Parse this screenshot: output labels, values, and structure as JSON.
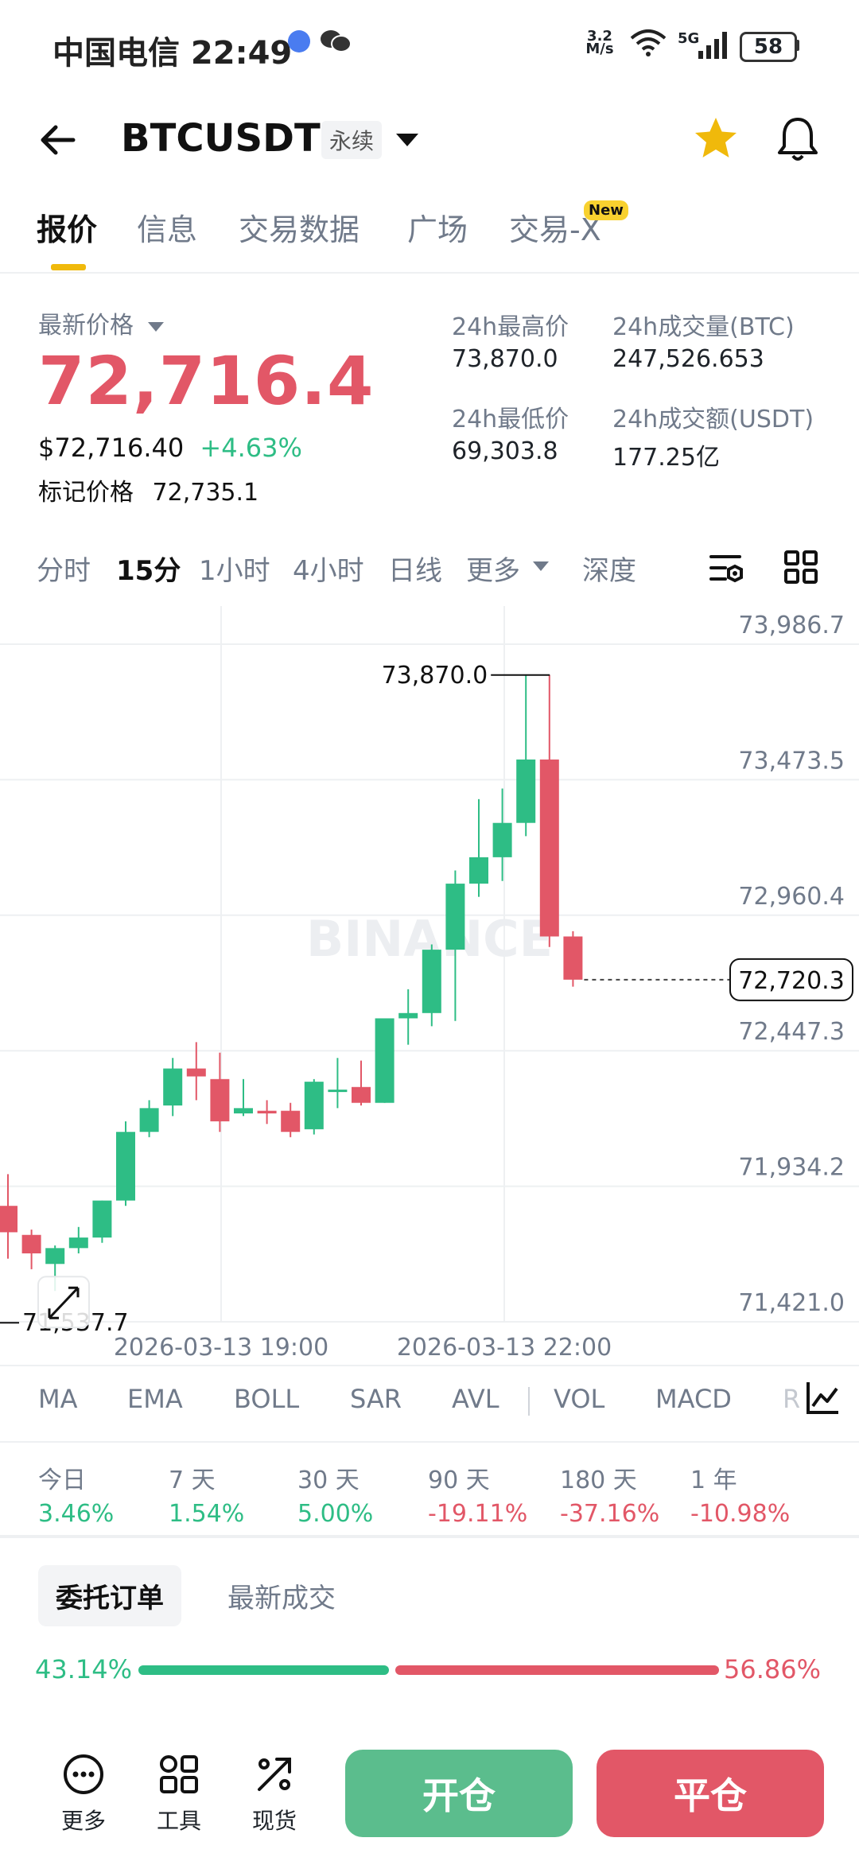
{
  "status_bar": {
    "carrier_time": "中国电信 22:49",
    "net_speed_top": "3.2",
    "net_speed_bottom": "M/s",
    "signal": "5G",
    "battery": "58"
  },
  "header": {
    "pair": "BTCUSDT",
    "contract_type": "永续",
    "icons": [
      "back-arrow-icon",
      "chevron-down-icon",
      "star-icon",
      "bell-icon"
    ]
  },
  "tabs": [
    {
      "label": "报价",
      "active": true
    },
    {
      "label": "信息"
    },
    {
      "label": "交易数据"
    },
    {
      "label": "广场"
    },
    {
      "label": "交易-X",
      "badge": "New"
    }
  ],
  "ticker": {
    "last_price_label": "最新价格",
    "last_price": "72,716.4",
    "usd_price": "$72,716.40",
    "change_pct": "+4.63%",
    "mark_label": "标记价格",
    "mark_price": "72,735.1",
    "high_label": "24h最高价",
    "high_value": "73,870.0",
    "vol_btc_label": "24h成交量(BTC)",
    "vol_btc_value": "247,526.653",
    "low_label": "24h最低价",
    "low_value": "69,303.8",
    "vol_usdt_label": "24h成交额(USDT)",
    "vol_usdt_value": "177.25亿"
  },
  "intervals": [
    "分时",
    "15分",
    "1小时",
    "4小时",
    "日线",
    "更多",
    "深度"
  ],
  "selected_interval": "15分",
  "chart": {
    "watermark": "BINANCE",
    "y_labels": [
      "73,986.7",
      "73,473.5",
      "72,960.4",
      "72,447.3",
      "71,934.2",
      "71,421.0"
    ],
    "x_labels": [
      "2026-03-13 19:00",
      "2026-03-13 22:00"
    ],
    "high_marker": "73,870.0",
    "low_marker": "71,537.7",
    "current_price_tag": "72,720.3",
    "up_color": "#2ebd85",
    "down_color": "#e25767"
  },
  "chart_data": {
    "type": "candlestick",
    "title": "",
    "xlabel": "",
    "ylabel": "",
    "ylim": [
      71421.0,
      73986.7
    ],
    "x_ticks": [
      "2026-03-13 19:00",
      "2026-03-13 22:00"
    ],
    "candles": [
      {
        "o": 71860,
        "h": 71980,
        "c": 71760,
        "l": 71660
      },
      {
        "o": 71750,
        "h": 71770,
        "c": 71680,
        "l": 71620
      },
      {
        "o": 71640,
        "h": 71710,
        "c": 71700,
        "l": 71537.7
      },
      {
        "o": 71700,
        "h": 71780,
        "c": 71740,
        "l": 71680
      },
      {
        "o": 71740,
        "h": 71880,
        "c": 71880,
        "l": 71720
      },
      {
        "o": 71880,
        "h": 72180,
        "c": 72140,
        "l": 71860
      },
      {
        "o": 72140,
        "h": 72260,
        "c": 72230,
        "l": 72120
      },
      {
        "o": 72240,
        "h": 72420,
        "c": 72380,
        "l": 72200
      },
      {
        "o": 72380,
        "h": 72480,
        "c": 72350,
        "l": 72260
      },
      {
        "o": 72340,
        "h": 72440,
        "c": 72180,
        "l": 72140
      },
      {
        "o": 72210,
        "h": 72340,
        "c": 72230,
        "l": 72200
      },
      {
        "o": 72220,
        "h": 72260,
        "c": 72210,
        "l": 72170
      },
      {
        "o": 72220,
        "h": 72250,
        "c": 72140,
        "l": 72120
      },
      {
        "o": 72150,
        "h": 72340,
        "c": 72330,
        "l": 72130
      },
      {
        "o": 72300,
        "h": 72420,
        "c": 72300,
        "l": 72230
      },
      {
        "o": 72310,
        "h": 72410,
        "c": 72250,
        "l": 72240
      },
      {
        "o": 72250,
        "h": 72570,
        "c": 72570,
        "l": 72250
      },
      {
        "o": 72570,
        "h": 72680,
        "c": 72590,
        "l": 72470
      },
      {
        "o": 72590,
        "h": 72850,
        "c": 72830,
        "l": 72540
      },
      {
        "o": 72830,
        "h": 73130,
        "c": 73080,
        "l": 72560
      },
      {
        "o": 73080,
        "h": 73400,
        "c": 73180,
        "l": 73030
      },
      {
        "o": 73180,
        "h": 73440,
        "c": 73310,
        "l": 73090
      },
      {
        "o": 73310,
        "h": 73870,
        "c": 73550,
        "l": 73260
      },
      {
        "o": 73550,
        "h": 73870,
        "c": 72880,
        "l": 72840
      },
      {
        "o": 72880,
        "h": 72900,
        "c": 72716.4,
        "l": 72690
      }
    ]
  },
  "indicators": [
    "MA",
    "EMA",
    "BOLL",
    "SAR",
    "AVL",
    "VOL",
    "MACD",
    "R"
  ],
  "performance": [
    {
      "label": "今日",
      "value": "3.46%",
      "dir": "up"
    },
    {
      "label": "7 天",
      "value": "1.54%",
      "dir": "up"
    },
    {
      "label": "30 天",
      "value": "5.00%",
      "dir": "up"
    },
    {
      "label": "90 天",
      "value": "-19.11%",
      "dir": "down"
    },
    {
      "label": "180 天",
      "value": "-37.16%",
      "dir": "down"
    },
    {
      "label": "1 年",
      "value": "-10.98%",
      "dir": "down"
    }
  ],
  "orderbook": {
    "tab_selected": "委托订单",
    "tab_other": "最新成交",
    "buy_ratio": "43.14%",
    "sell_ratio": "56.86%",
    "buy_ratio_value": 0.4314
  },
  "bottom_nav": {
    "more": "更多",
    "tools": "工具",
    "spot": "现货",
    "open": "开仓",
    "close": "平仓"
  }
}
